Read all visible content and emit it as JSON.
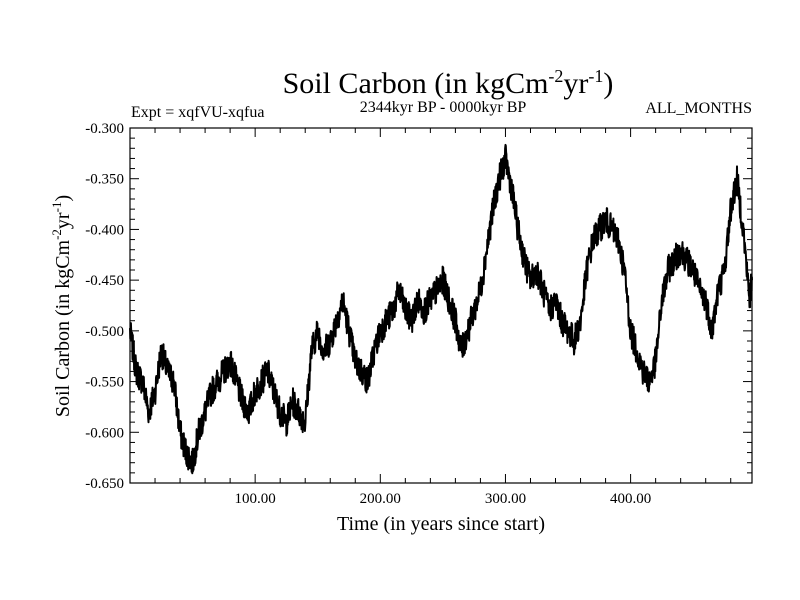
{
  "chart_data": {
    "type": "line",
    "title": {
      "main": "Soil Carbon (in kgCm",
      "sup1": "-2",
      "mid": "yr",
      "sup2": "-1",
      "end": ")"
    },
    "subtitle_left": "Expt = xqfVU-xqfua",
    "subtitle_center": "2344kyr BP - 0000kyr BP",
    "subtitle_right": "ALL_MONTHS",
    "xlabel": "Time (in years since start)",
    "ylabel": {
      "main": "Soil Carbon (in kgCm",
      "sup1": "-2",
      "mid": "yr",
      "sup2": "-1",
      "end": ")"
    },
    "xlim": [
      0,
      497
    ],
    "ylim": [
      -0.65,
      -0.3
    ],
    "xticks": [
      100,
      200,
      300,
      400
    ],
    "xtick_labels": [
      "100.00",
      "200.00",
      "300.00",
      "400.00"
    ],
    "yticks": [
      -0.3,
      -0.35,
      -0.4,
      -0.45,
      -0.5,
      -0.55,
      -0.6,
      -0.65
    ],
    "ytick_labels": [
      "-0.300",
      "-0.350",
      "-0.400",
      "-0.450",
      "-0.500",
      "-0.550",
      "-0.600",
      "-0.650"
    ],
    "grid": false,
    "series": [
      {
        "name": "soil carbon",
        "color": "#000000",
        "x": [
          0,
          5,
          10,
          15,
          20,
          25,
          30,
          35,
          40,
          45,
          50,
          55,
          60,
          65,
          70,
          75,
          80,
          85,
          90,
          95,
          100,
          105,
          110,
          115,
          120,
          125,
          130,
          135,
          140,
          145,
          150,
          155,
          160,
          165,
          170,
          175,
          180,
          185,
          190,
          195,
          200,
          205,
          210,
          215,
          220,
          225,
          230,
          235,
          240,
          245,
          250,
          255,
          260,
          265,
          270,
          275,
          280,
          285,
          290,
          295,
          300,
          305,
          310,
          315,
          320,
          325,
          330,
          335,
          340,
          345,
          350,
          355,
          360,
          365,
          370,
          375,
          380,
          385,
          390,
          395,
          400,
          405,
          410,
          415,
          420,
          425,
          430,
          435,
          440,
          445,
          450,
          455,
          460,
          465,
          470,
          475,
          480,
          485,
          490,
          495,
          497
        ],
        "values": [
          -0.5,
          -0.54,
          -0.55,
          -0.58,
          -0.56,
          -0.52,
          -0.54,
          -0.55,
          -0.6,
          -0.62,
          -0.63,
          -0.6,
          -0.58,
          -0.56,
          -0.55,
          -0.54,
          -0.53,
          -0.55,
          -0.57,
          -0.58,
          -0.56,
          -0.55,
          -0.54,
          -0.56,
          -0.58,
          -0.59,
          -0.57,
          -0.58,
          -0.59,
          -0.52,
          -0.5,
          -0.52,
          -0.51,
          -0.49,
          -0.47,
          -0.5,
          -0.53,
          -0.54,
          -0.55,
          -0.52,
          -0.5,
          -0.49,
          -0.48,
          -0.46,
          -0.48,
          -0.49,
          -0.47,
          -0.48,
          -0.47,
          -0.46,
          -0.45,
          -0.47,
          -0.49,
          -0.52,
          -0.5,
          -0.48,
          -0.46,
          -0.42,
          -0.38,
          -0.35,
          -0.33,
          -0.36,
          -0.4,
          -0.43,
          -0.45,
          -0.44,
          -0.46,
          -0.48,
          -0.47,
          -0.49,
          -0.5,
          -0.51,
          -0.49,
          -0.44,
          -0.41,
          -0.4,
          -0.39,
          -0.4,
          -0.41,
          -0.44,
          -0.5,
          -0.52,
          -0.54,
          -0.55,
          -0.53,
          -0.47,
          -0.44,
          -0.43,
          -0.42,
          -0.43,
          -0.44,
          -0.46,
          -0.47,
          -0.5,
          -0.46,
          -0.44,
          -0.38,
          -0.35,
          -0.4,
          -0.47,
          -0.45
        ]
      }
    ]
  }
}
